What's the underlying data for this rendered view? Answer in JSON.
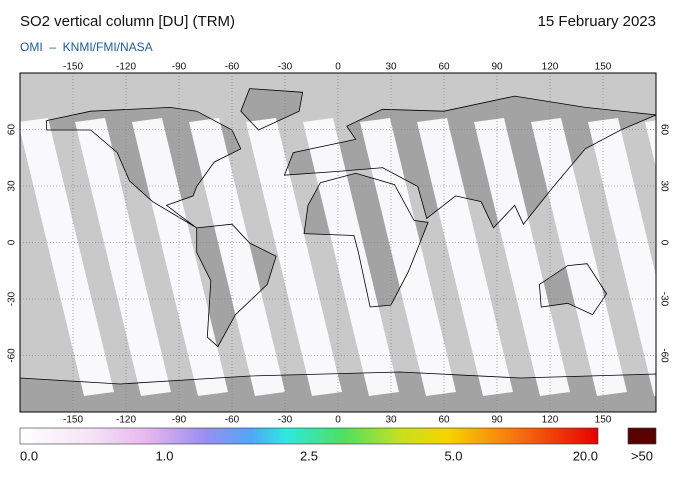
{
  "header": {
    "title": "SO2 vertical column [DU] (TRM)",
    "date": "15 February 2023",
    "source": "OMI  –  KNMI/FMI/NASA"
  },
  "map": {
    "lon_ticks": [
      -150,
      -120,
      -90,
      -60,
      -30,
      0,
      30,
      60,
      90,
      120,
      150
    ],
    "lat_ticks": [
      60,
      30,
      0,
      -30,
      -60
    ]
  },
  "colorbar": {
    "labels": [
      "0.0",
      "1.0",
      "2.5",
      "5.0",
      "20.0"
    ],
    "overflow_label": ">50"
  }
}
